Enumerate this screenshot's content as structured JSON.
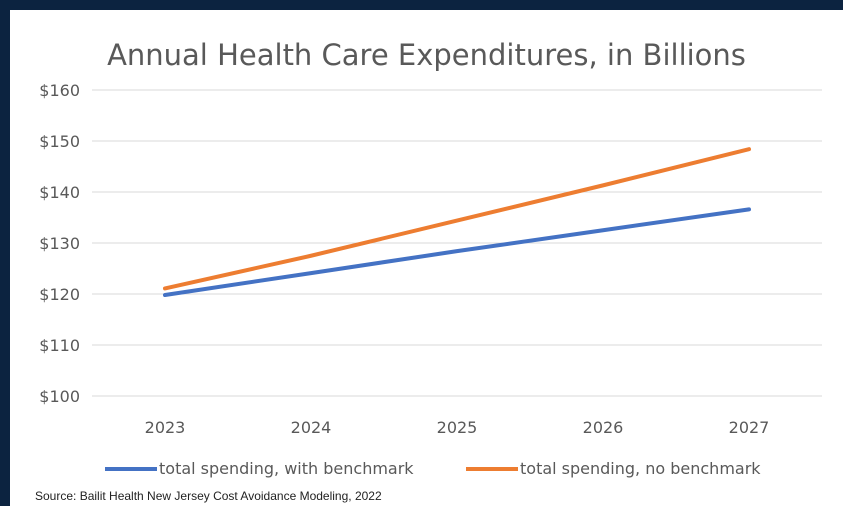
{
  "chart_data": {
    "type": "line",
    "title": "Annual Health Care Expenditures, in Billions",
    "xlabel": "",
    "ylabel": "",
    "categories": [
      "2023",
      "2024",
      "2025",
      "2026",
      "2027"
    ],
    "ylim": [
      100,
      160
    ],
    "yticks": [
      100,
      110,
      120,
      130,
      140,
      150,
      160
    ],
    "ytick_labels": [
      "$100",
      "$110",
      "$120",
      "$130",
      "$140",
      "$150",
      "$160"
    ],
    "grid": true,
    "legend_position": "bottom",
    "series": [
      {
        "name": "total spending, with benchmark",
        "values": [
          119.8,
          124.1,
          128.4,
          132.5,
          136.6
        ],
        "color": "#4472c4"
      },
      {
        "name": "total spending, no benchmark",
        "values": [
          121.1,
          127.5,
          134.4,
          141.3,
          148.4
        ],
        "color": "#ed7d31"
      }
    ]
  },
  "source": "Source: Bailit Health New Jersey Cost Avoidance Modeling, 2022"
}
